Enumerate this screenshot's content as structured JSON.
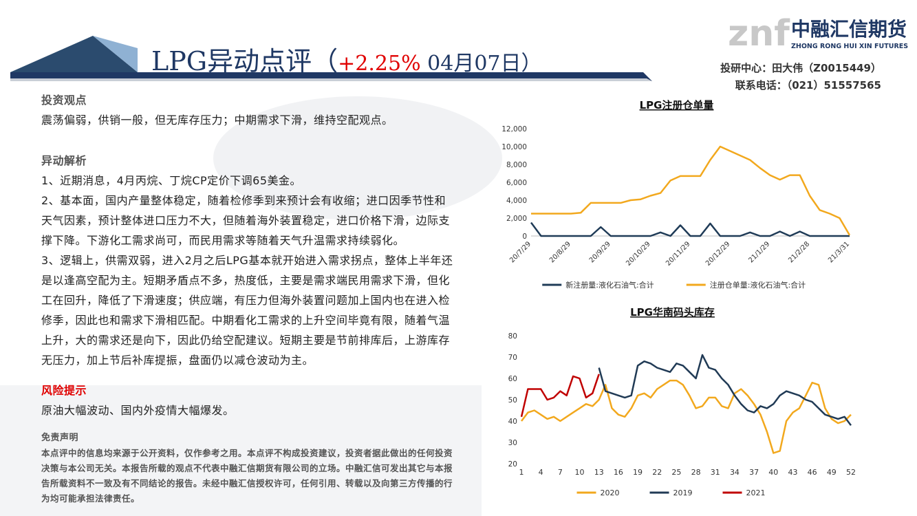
{
  "header": {
    "title_prefix": "LPG异动点评（",
    "change": "+2.25%",
    "title_suffix": " 04月07日）",
    "logo_mark": "znf",
    "company": "中融汇信期货",
    "company_en": "ZHONG RONG HUI XIN FUTURES",
    "contact": [
      "投研中心：田大伟（Z0015449）",
      "联系电话：（021）51557565"
    ]
  },
  "sections": [
    {
      "heading": "投资观点",
      "paragraphs": [
        "震荡偏弱，供销一般，但无库存压力；中期需求下滑，维持空配观点。"
      ]
    },
    {
      "heading": "异动解析",
      "paragraphs": [
        "1、近期消息，4月丙烷、丁烷CP定价下调65美金。",
        "2、基本面，国内产量整体稳定，随着检修季到来预计会有收缩；进口因季节性和天气因素，预计整体进口压力不大，但随着海外装置稳定，进口价格下滑，边际支撑下降。下游化工需求尚可，而民用需求等随着天气升温需求持续弱化。",
        "3、逻辑上，供需双弱，进入2月之后LPG基本就开始进入需求拐点，整体上半年还是以逢高空配为主。短期矛盾点不多，热度低，主要是需求端民用需求下滑，但化工在回升，降低了下滑速度；供应端，有压力但海外装置问题加上国内也在进入检修季，因此也和需求下滑相匹配。中期看化工需求的上升空间毕竟有限，随着气温上升，大的需求还是向下，因此仍给空配建议。短期主要是节前排库后，上游库存无压力，加上节后补库提振，盘面仍以减仓波动为主。"
      ]
    },
    {
      "heading": "风险提示",
      "paragraphs": [
        "原油大幅波动、国内外疫情大幅爆发。"
      ]
    }
  ],
  "disclaimer": {
    "heading": "免责声明",
    "text": "本点评中的信息均来源于公开资料，仅作参考之用。本点评不构成投资建议，投资者据此做出的任何投资决策与本公司无关。本报告所载的观点不代表中融汇信期货有限公司的立场。中融汇信可发出其它与本报告所载资料不一致及有不同结论的报告。未经中融汇信授权许可，任何引用、转载以及向第三方传播的行为均可能承担法律责任。"
  },
  "chart_data": [
    {
      "type": "line",
      "title": "LPG注册仓单量",
      "categories": [
        "20/7/29",
        null,
        null,
        null,
        "20/8/29",
        null,
        null,
        null,
        "20/9/29",
        null,
        null,
        null,
        "20/10/29",
        null,
        null,
        null,
        "20/11/29",
        null,
        null,
        null,
        "20/12/29",
        null,
        null,
        null,
        "21/1/29",
        null,
        null,
        null,
        "21/2/28",
        null,
        null,
        null,
        "21/3/31"
      ],
      "series": [
        {
          "name": "新注册量:液化石油气:合计",
          "color": "#1f3b57",
          "values": [
            1500,
            0,
            0,
            0,
            0,
            0,
            0,
            1000,
            0,
            0,
            0,
            0,
            0,
            400,
            0,
            1200,
            0,
            0,
            1400,
            0,
            0,
            0,
            400,
            0,
            0,
            500,
            0,
            500,
            0,
            0,
            0,
            0,
            0
          ]
        },
        {
          "name": "注册仓单量:液化石油气:合计",
          "color": "#f2a81d",
          "values": [
            2500,
            2500,
            2500,
            2500,
            2500,
            2600,
            3700,
            3700,
            3700,
            3700,
            4000,
            4100,
            4500,
            4800,
            6200,
            6700,
            6700,
            6700,
            8500,
            10000,
            9500,
            9000,
            8500,
            7600,
            6800,
            6300,
            6800,
            6800,
            4500,
            2900,
            2500,
            2000,
            100
          ]
        }
      ],
      "ylim": [
        0,
        12000
      ],
      "yticks": [
        0,
        {
          "value": 2000,
          "label": "2,000"
        },
        {
          "value": 4000,
          "label": "4,000"
        },
        {
          "value": 6000,
          "label": "6,000"
        },
        {
          "value": 8000,
          "label": "8,000"
        },
        {
          "value": 10000,
          "label": "10,000"
        },
        {
          "value": 12000,
          "label": "12,000"
        }
      ],
      "grid": false,
      "legend": "bottom"
    },
    {
      "type": "line",
      "title": "LPG华南码头库存",
      "x": [
        1,
        2,
        3,
        4,
        5,
        6,
        7,
        8,
        9,
        10,
        11,
        12,
        13,
        14,
        15,
        16,
        17,
        18,
        19,
        20,
        21,
        22,
        23,
        24,
        25,
        26,
        27,
        28,
        29,
        30,
        31,
        32,
        33,
        34,
        35,
        36,
        37,
        38,
        39,
        40,
        41,
        42,
        43,
        44,
        45,
        46,
        47,
        48,
        49,
        50,
        51,
        52
      ],
      "series": [
        {
          "name": "2020",
          "color": "#f2a81d",
          "values": [
            40,
            44,
            45,
            43,
            41,
            42,
            40,
            42,
            44,
            46,
            48,
            47,
            50,
            57,
            46,
            43,
            42,
            46,
            52,
            53,
            51,
            55,
            57,
            59,
            59,
            57,
            52,
            46,
            47,
            51,
            51,
            47,
            46,
            53,
            55,
            52,
            48,
            43,
            35,
            25,
            26,
            40,
            44,
            46,
            52,
            58,
            57,
            46,
            41,
            39,
            40,
            43
          ]
        },
        {
          "name": "2019",
          "color": "#203a55",
          "values": [
            null,
            null,
            null,
            null,
            null,
            null,
            null,
            null,
            null,
            null,
            null,
            null,
            65,
            54,
            53,
            52,
            51,
            52,
            66,
            68,
            67,
            65,
            64,
            63,
            67,
            66,
            63,
            60,
            71,
            65,
            64,
            60,
            57,
            52,
            48,
            45,
            44,
            47,
            46,
            48,
            52,
            54,
            53,
            52,
            50,
            49,
            46,
            43,
            42,
            41,
            42,
            38
          ]
        },
        {
          "name": "2021",
          "color": "#c00000",
          "values": [
            42,
            55,
            55,
            55,
            50,
            51,
            54,
            52,
            61,
            60,
            51,
            53,
            62,
            null,
            null,
            null,
            null,
            null,
            null,
            null,
            null,
            null,
            null,
            null,
            null,
            null,
            null,
            null,
            null,
            null,
            null,
            null,
            null,
            null,
            null,
            null,
            null,
            null,
            null,
            null,
            null,
            null,
            null,
            null,
            null,
            null,
            null,
            null,
            null,
            null,
            null,
            null
          ]
        }
      ],
      "xlim": [
        1,
        52
      ],
      "xticks": [
        1,
        4,
        7,
        10,
        13,
        16,
        19,
        22,
        25,
        28,
        31,
        34,
        37,
        40,
        43,
        46,
        49,
        52
      ],
      "ylim": [
        20,
        80
      ],
      "yticks": [
        20,
        30,
        40,
        50,
        60,
        70,
        80
      ],
      "grid": false,
      "legend": "bottom"
    }
  ]
}
